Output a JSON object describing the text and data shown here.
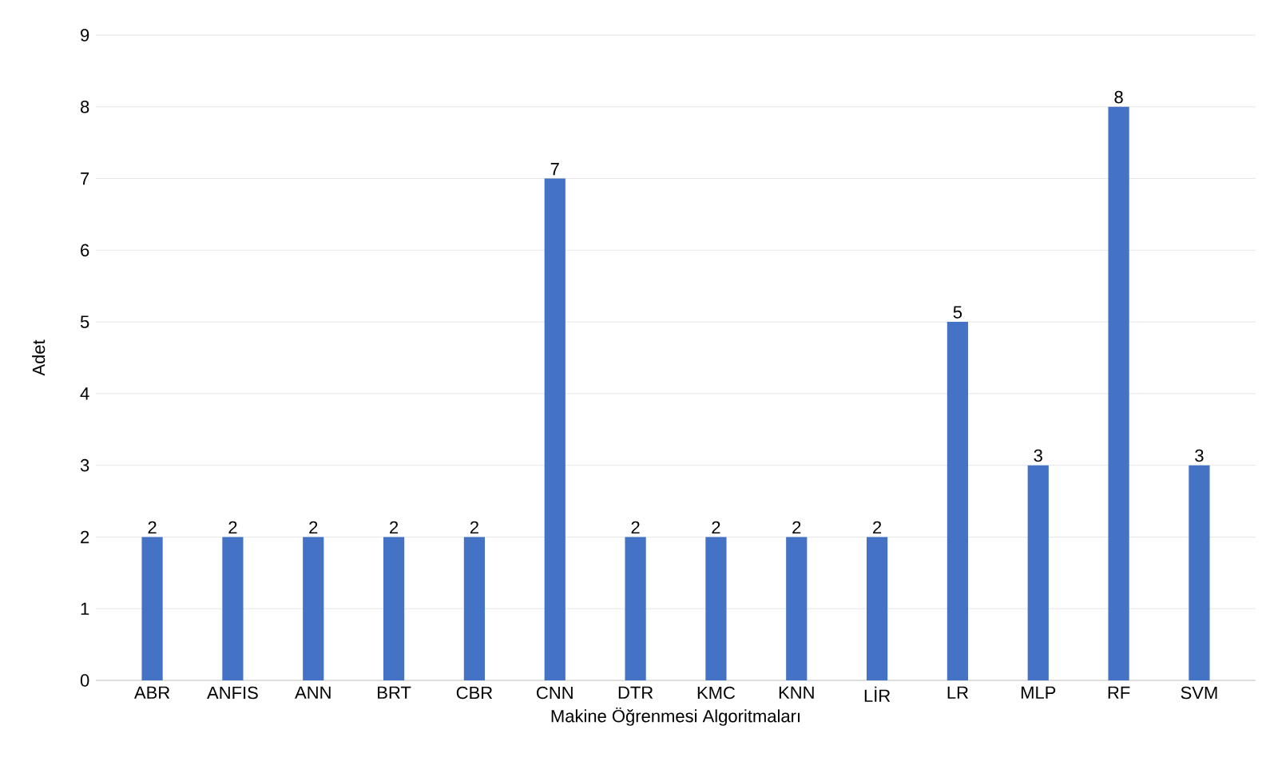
{
  "chart_data": {
    "type": "bar",
    "xlabel": "Makine Öğrenmesi Algoritmaları",
    "ylabel": "Adet",
    "categories": [
      "ABR",
      "ANFIS",
      "ANN",
      "BRT",
      "CBR",
      "CNN",
      "DTR",
      "KMC",
      "KNN",
      "LİR",
      "LR",
      "MLP",
      "RF",
      "SVM"
    ],
    "values": [
      2,
      2,
      2,
      2,
      2,
      7,
      2,
      2,
      2,
      2,
      5,
      3,
      8,
      3
    ],
    "color": "#4472c4",
    "ylim": [
      0,
      9
    ],
    "yticks": [
      0,
      1,
      2,
      3,
      4,
      5,
      6,
      7,
      8,
      9
    ],
    "grid": "y",
    "data_labels": true
  }
}
